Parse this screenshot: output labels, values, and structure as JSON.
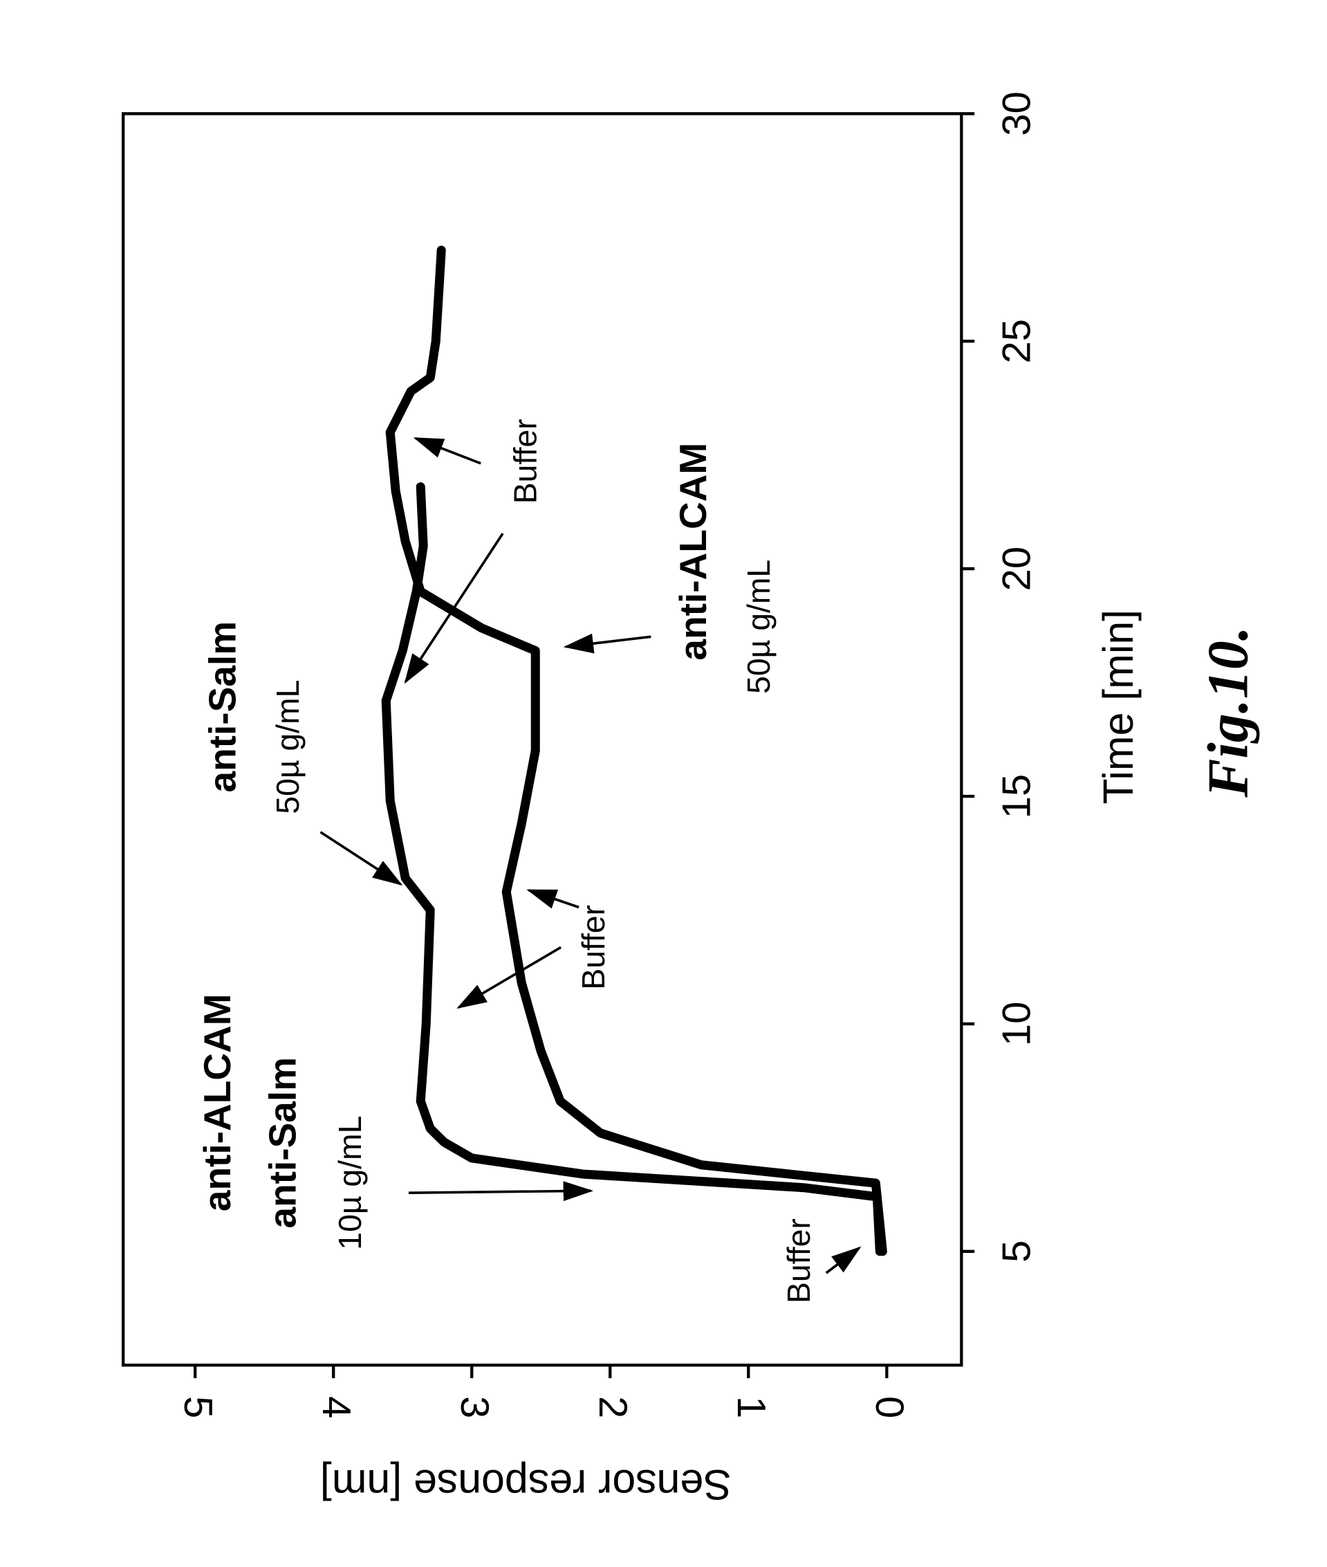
{
  "chart_data": {
    "type": "line",
    "xlabel": "Time [min]",
    "ylabel": "Sensor response [nm]",
    "caption": "Fig.10.",
    "xlim": [
      2.5,
      30
    ],
    "xticks": [
      5,
      10,
      15,
      20,
      25,
      30
    ],
    "ylim": [
      -0.54,
      5.52
    ],
    "yticks": [
      0,
      1,
      2,
      3,
      4,
      5
    ],
    "series": [
      {
        "color": "#000000",
        "x": [
          5,
          6.2,
          6.4,
          6.7,
          7.05,
          7.4,
          7.7,
          8.3,
          10,
          12.5,
          13.2,
          14.9,
          17.1,
          18.2,
          19.5,
          20.5,
          21.8
        ],
        "values": [
          0.05,
          0.07,
          0.6,
          2.2,
          3.0,
          3.2,
          3.3,
          3.37,
          3.33,
          3.3,
          3.48,
          3.59,
          3.62,
          3.5,
          3.4,
          3.35,
          3.37
        ]
      },
      {
        "color": "#000000",
        "x": [
          5,
          6.5,
          6.9,
          7.6,
          8.3,
          9.4,
          10.9,
          12.9,
          14.4,
          16,
          18.2,
          18.7,
          19.5,
          20.6,
          21.7,
          23,
          23.9,
          24.2,
          25,
          27
        ],
        "values": [
          0.03,
          0.08,
          1.34,
          2.07,
          2.36,
          2.5,
          2.64,
          2.75,
          2.64,
          2.54,
          2.54,
          2.93,
          3.37,
          3.48,
          3.55,
          3.59,
          3.44,
          3.3,
          3.26,
          3.22
        ]
      }
    ],
    "annotations": [
      "anti-ALCAM",
      "anti-Salm",
      "10µ  g/mL",
      "Buffer",
      "anti-Salm",
      "50µ  g/mL",
      "Buffer",
      "anti-ALCAM",
      "50µ  g/mL",
      "Buffer"
    ]
  }
}
